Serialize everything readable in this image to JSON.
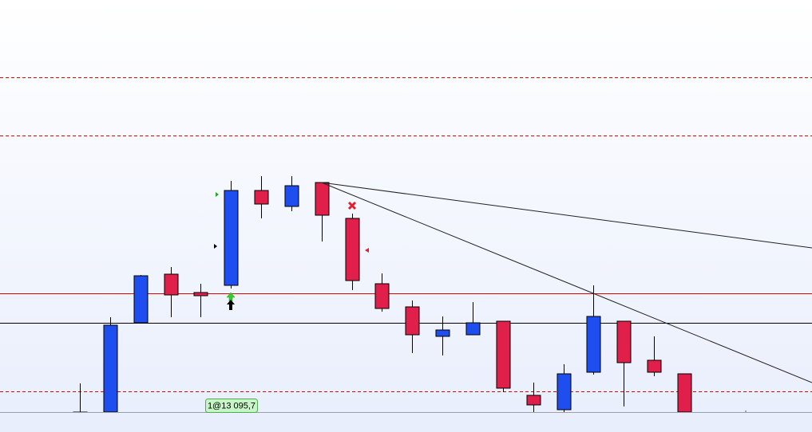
{
  "chart_data": {
    "type": "candlestick",
    "x": [
      0,
      1,
      2,
      3,
      4,
      5,
      6,
      7,
      8,
      9,
      10,
      11,
      12,
      13,
      14,
      15,
      16,
      17,
      18,
      19,
      20
    ],
    "open": [
      13058.45,
      13058.45,
      13086.45,
      13101.7,
      13095.95,
      13098.2,
      13127.95,
      13122.95,
      13130.45,
      13119.2,
      13098.7,
      13091.45,
      13082.2,
      13082.7,
      13086.95,
      13063.7,
      13059.2,
      13070.95,
      13086.95,
      13074.7,
      13070.45
    ],
    "high": [
      13067.45,
      13088.2,
      13101.45,
      13103.95,
      13098.7,
      13130.95,
      13132.45,
      13132.45,
      13130.45,
      13120.7,
      13101.95,
      13093.45,
      13088.45,
      13092.95,
      13086.95,
      13067.7,
      13073.45,
      13098.2,
      13086.95,
      13082.2,
      13070.45
    ],
    "low": [
      13058.45,
      13058.45,
      13086.45,
      13088.2,
      13088.2,
      13097.2,
      13119.2,
      13121.45,
      13111.95,
      13096.7,
      13089.95,
      13076.95,
      13076.2,
      13082.7,
      13064.7,
      13058.45,
      13058.45,
      13070.2,
      13060.2,
      13069.7,
      13058.45
    ],
    "close": [
      13058.45,
      13085.7,
      13101.2,
      13095.2,
      13094.95,
      13127.95,
      13123.7,
      13129.45,
      13120.2,
      13099.7,
      13090.95,
      13082.7,
      13084.2,
      13086.45,
      13065.95,
      13060.7,
      13070.45,
      13088.45,
      13073.95,
      13070.95,
      13058.45
    ],
    "up_color": "#1f4ef0",
    "down_color": "#e0204a",
    "xlim": [
      -2.642,
      24.23
    ],
    "ylim": [
      13058.45,
      13187.7
    ],
    "levels": [
      {
        "value": 13163.45,
        "color": "#e00000",
        "style": "dashed"
      },
      {
        "value": 13145.2,
        "color": "#e00000",
        "style": "dashed"
      },
      {
        "value": 13095.7,
        "color": "#e00000",
        "style": "solid"
      },
      {
        "value": 13086.45,
        "color": "#000000",
        "style": "solid"
      },
      {
        "value": 13064.95,
        "color": "#e00000",
        "style": "dashed"
      }
    ],
    "trendlines": [
      {
        "x": [
          8,
          24.23
        ],
        "y": [
          13130.45,
          13109.95
        ]
      },
      {
        "x": [
          8,
          24.23
        ],
        "y": [
          13130.45,
          13067.7
        ]
      }
    ],
    "order_label": "1@13 095,7"
  }
}
